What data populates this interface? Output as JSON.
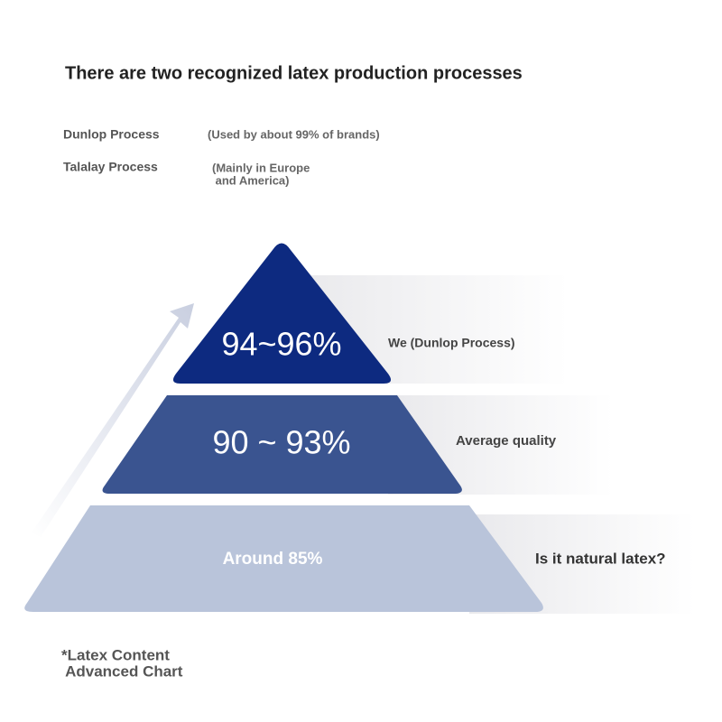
{
  "title": "There are two recognized latex production processes",
  "processes": [
    {
      "name": "Dunlop Process",
      "note": [
        "(Used by about 99% of brands)"
      ]
    },
    {
      "name": "Talalay Process",
      "note": [
        "(Mainly in Europe",
        " and America)"
      ]
    }
  ],
  "pyramid": [
    {
      "label": "94~96%",
      "description": "We (Dunlop Process)"
    },
    {
      "label": "90 ~ 93%",
      "description": "Average quality"
    },
    {
      "label": "Around 85%",
      "description": "Is it natural latex?"
    }
  ],
  "footnote": [
    "*Latex Content",
    " Advanced Chart"
  ]
}
